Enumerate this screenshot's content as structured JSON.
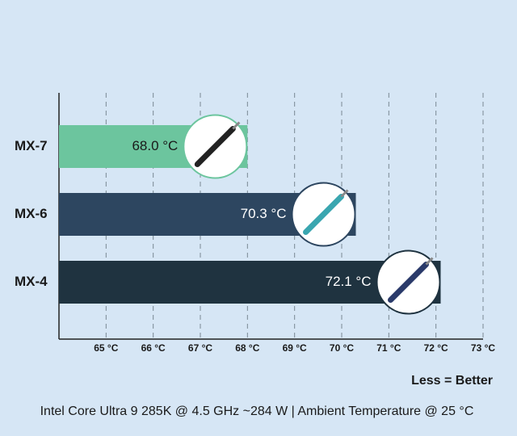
{
  "chart_data": {
    "type": "hbar",
    "categories": [
      "MX-7",
      "MX-6",
      "MX-4"
    ],
    "values": [
      68.0,
      70.3,
      72.1
    ],
    "value_labels": [
      "68.0 °C",
      "70.3 °C",
      "72.1 °C"
    ],
    "colors": [
      "#6cc59e",
      "#2d4660",
      "#1f3340"
    ],
    "xlim": [
      64,
      73
    ],
    "xticks": [
      {
        "value": 65,
        "label": "65 °C"
      },
      {
        "value": 66,
        "label": "66 °C"
      },
      {
        "value": 67,
        "label": "67 °C"
      },
      {
        "value": 68,
        "label": "68 °C"
      },
      {
        "value": 69,
        "label": "69 °C"
      },
      {
        "value": 70,
        "label": "70 °C"
      },
      {
        "value": 71,
        "label": "71 °C"
      },
      {
        "value": 72,
        "label": "72 °C"
      },
      {
        "value": 73,
        "label": "73 °C"
      }
    ],
    "grid": true,
    "annotations": [
      "Less = Better",
      "Intel Core Ultra 9 285K @ 4.5 GHz ~284 W | Ambient Temperature @ 25 °C"
    ]
  }
}
